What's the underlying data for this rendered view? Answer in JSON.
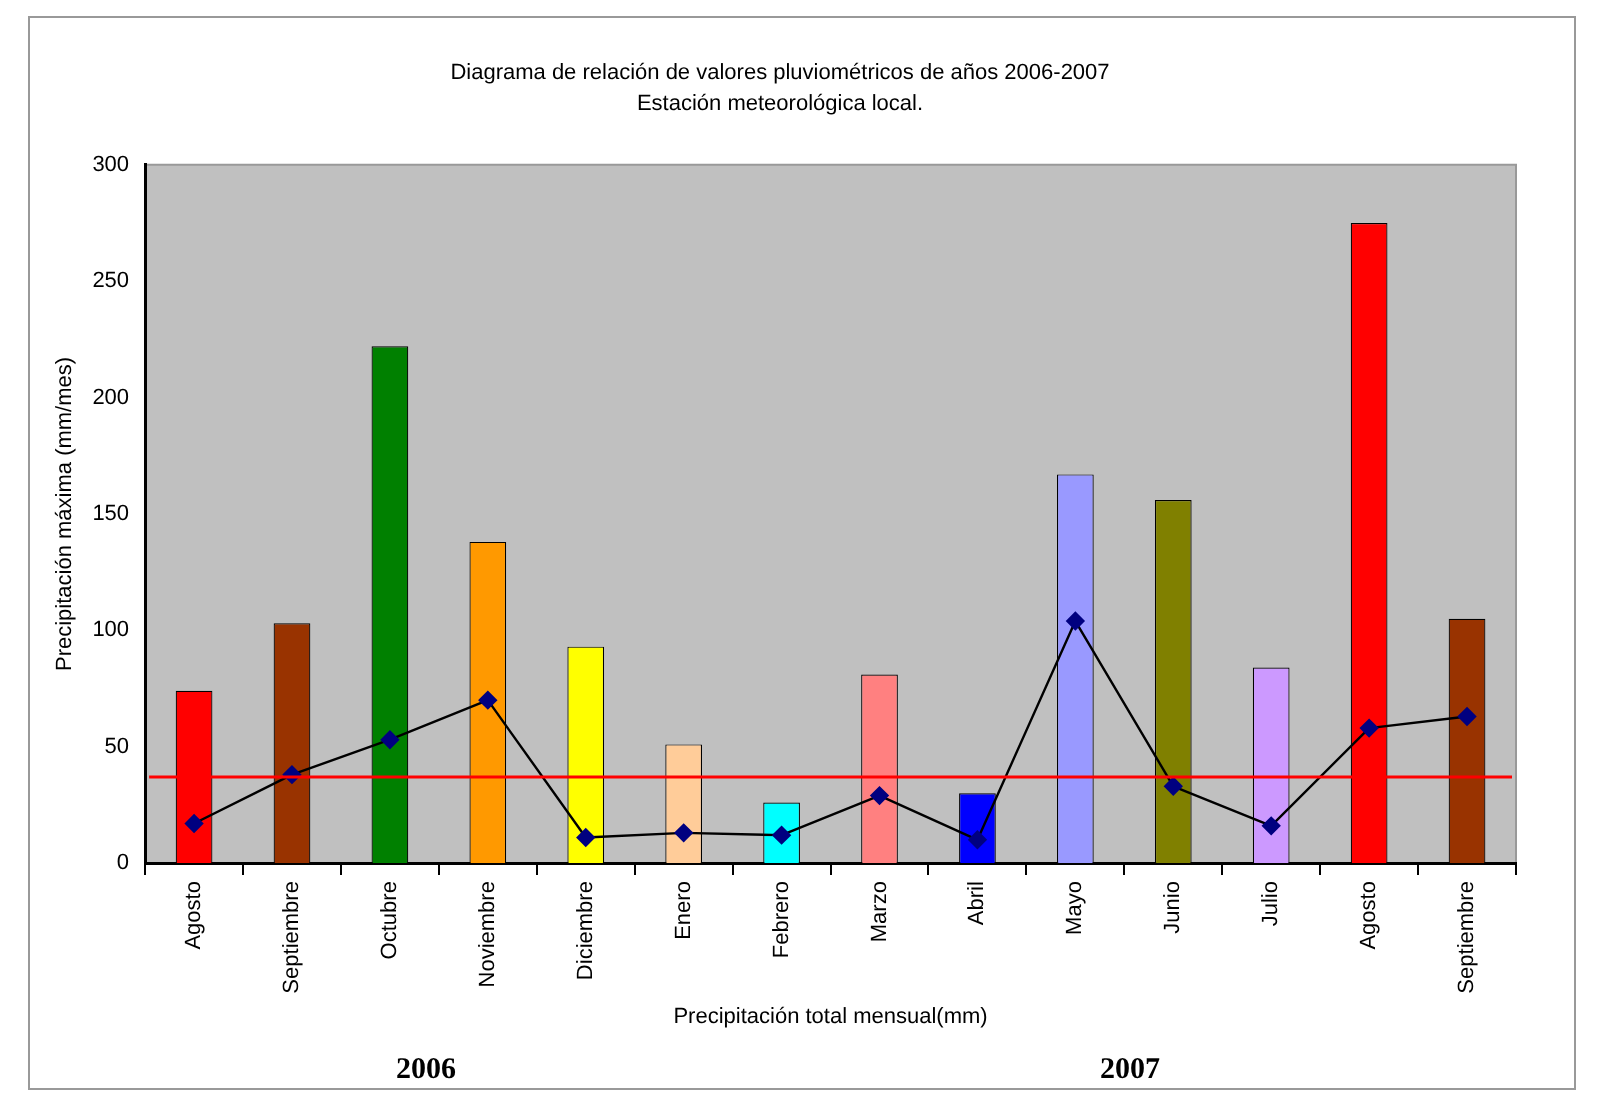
{
  "chart_data": {
    "type": "bar",
    "title": "Diagrama de relación de valores pluviométricos de años 2006-2007",
    "subtitle": "Estación meteorológica local.",
    "xlabel": "Precipitación total mensual(mm)",
    "ylabel": "Precipitación máxima (mm/mes)",
    "categories": [
      "Agosto",
      "Septiembre",
      "Octubre",
      "Noviembre",
      "Diciembre",
      "Enero",
      "Febrero",
      "Marzo",
      "Abril",
      "Mayo",
      "Junio",
      "Julio",
      "Agosto",
      "Septiembre"
    ],
    "series": [
      {
        "colors": [
          "#ff0000",
          "#993300",
          "#008000",
          "#ff9900",
          "#ffff00",
          "#ffcc99",
          "#00ffff",
          "#ff8080",
          "#0000ff",
          "#9999ff",
          "#808000",
          "#cc99ff",
          "#ff0000",
          "#993300"
        ],
        "values": [
          74,
          103,
          222,
          138,
          93,
          51,
          26,
          81,
          30,
          167,
          156,
          84,
          275,
          105
        ]
      },
      {
        "type": "line",
        "color": "#000000",
        "marker": "diamond",
        "values": [
          17,
          38,
          53,
          70,
          11,
          13,
          12,
          29,
          10,
          104,
          33,
          16,
          58,
          63
        ]
      }
    ],
    "ylim": [
      0,
      300
    ],
    "yticks": [
      0,
      50,
      100,
      150,
      200,
      250,
      300
    ],
    "grid": false,
    "legend": false,
    "ref_lines": [
      {
        "axis": "y",
        "value": 37,
        "color": "#ff0000"
      }
    ],
    "annotations": [
      "2006",
      "2007"
    ]
  }
}
